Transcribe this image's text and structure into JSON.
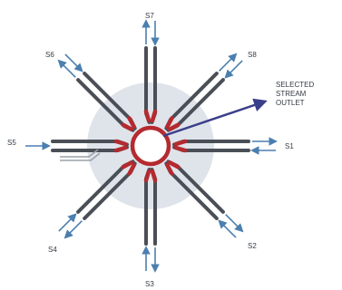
{
  "ports": [
    {
      "id": "S1",
      "label": "S1",
      "direction": "E"
    },
    {
      "id": "S2",
      "label": "S2",
      "direction": "SE"
    },
    {
      "id": "S3",
      "label": "S3",
      "direction": "S"
    },
    {
      "id": "S4",
      "label": "S4",
      "direction": "SW"
    },
    {
      "id": "S5",
      "label": "S5",
      "direction": "W"
    },
    {
      "id": "S6",
      "label": "S6",
      "direction": "NW"
    },
    {
      "id": "S7",
      "label": "S7",
      "direction": "N"
    },
    {
      "id": "S8",
      "label": "S8",
      "direction": "NE"
    }
  ],
  "outlet": {
    "label_lines": [
      "SELECTED",
      "STREAM",
      "OUTLET"
    ]
  },
  "colors": {
    "tube": "#4a4f57",
    "seal": "#b52a2f",
    "ring": "#b52a2f",
    "arrow": "#4a7fb0",
    "body": "#dfe3ea",
    "outlet_line": "#3a3f8a"
  }
}
